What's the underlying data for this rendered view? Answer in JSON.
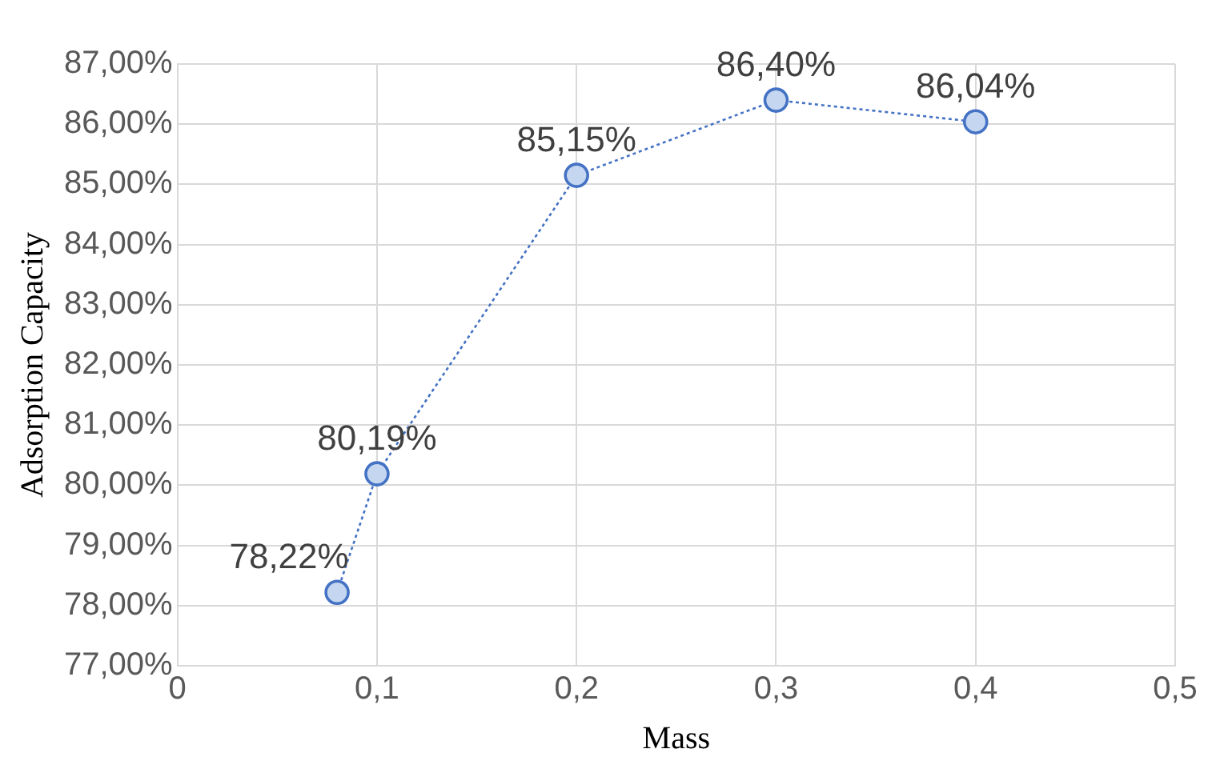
{
  "chart_data": {
    "type": "line",
    "xlabel": "Mass",
    "ylabel": "Adsorption Capacity",
    "x": [
      0.08,
      0.1,
      0.2,
      0.3,
      0.4
    ],
    "series": [
      {
        "color": "#4472c4",
        "values": [
          78.22,
          80.19,
          85.15,
          86.4,
          86.04
        ],
        "value_labels": [
          "78,22%",
          "80,19%",
          "85,15%",
          "86,40%",
          "86,04%"
        ]
      }
    ],
    "xlim": [
      0,
      0.5
    ],
    "xticks": [
      0,
      {
        "value": 0.1,
        "label": "0,1"
      },
      {
        "value": 0.2,
        "label": "0,2"
      },
      {
        "value": 0.3,
        "label": "0,3"
      },
      {
        "value": 0.4,
        "label": "0,4"
      },
      {
        "value": 0.5,
        "label": "0,5"
      }
    ],
    "ylim": [
      77,
      87
    ],
    "yticks": [
      {
        "value": 77,
        "label": "77,00%"
      },
      {
        "value": 78,
        "label": "78,00%"
      },
      {
        "value": 79,
        "label": "79,00%"
      },
      {
        "value": 80,
        "label": "80,00%"
      },
      {
        "value": 81,
        "label": "81,00%"
      },
      {
        "value": 82,
        "label": "82,00%"
      },
      {
        "value": 83,
        "label": "83,00%"
      },
      {
        "value": 84,
        "label": "84,00%"
      },
      {
        "value": 85,
        "label": "85,00%"
      },
      {
        "value": 86,
        "label": "86,00%"
      },
      {
        "value": 87,
        "label": "87,00%"
      }
    ],
    "grid": true,
    "marker": "circle",
    "line_style": "dotted"
  }
}
